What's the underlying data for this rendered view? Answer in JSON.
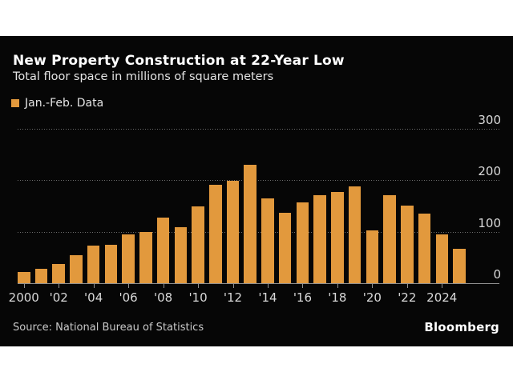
{
  "header": {
    "title": "New Property Construction at 22-Year Low",
    "subtitle": "Total floor space in millions of square meters"
  },
  "legend": {
    "label": "Jan.-Feb. Data",
    "swatch_color": "#e2993d"
  },
  "chart_data": {
    "type": "bar",
    "title": "New Property Construction at 22-Year Low",
    "subtitle": "Total floor space in millions of square meters",
    "series_name": "Jan.-Feb. Data",
    "categories": [
      2000,
      2001,
      2002,
      2003,
      2004,
      2005,
      2006,
      2007,
      2008,
      2009,
      2010,
      2011,
      2012,
      2013,
      2014,
      2015,
      2016,
      2017,
      2018,
      2019,
      2020,
      2021,
      2022,
      2023,
      2024,
      2025
    ],
    "values": [
      22,
      28,
      37,
      55,
      73,
      75,
      95,
      99,
      127,
      108,
      149,
      190,
      199,
      229,
      165,
      136,
      156,
      170,
      177,
      187,
      103,
      170,
      150,
      135,
      94,
      66
    ],
    "ylabel": "",
    "xlabel": "",
    "ylim": [
      0,
      300
    ],
    "y_ticks": [
      0,
      100,
      200,
      300
    ],
    "y_tick_side": "right",
    "x_tick_years": [
      2000,
      2002,
      2004,
      2006,
      2008,
      2010,
      2012,
      2014,
      2016,
      2018,
      2020,
      2022,
      2024
    ],
    "x_tick_labels": [
      "2000",
      "'02",
      "'04",
      "'06",
      "'08",
      "'10",
      "'12",
      "'14",
      "'16",
      "'18",
      "'20",
      "'22",
      "2024"
    ],
    "grid": "horizontal-dotted",
    "legend_position": "top-left",
    "bar_color": "#e2993d",
    "background_color": "#060606"
  },
  "footer": {
    "source": "Source: National Bureau of Statistics",
    "brand": "Bloomberg"
  },
  "colors": {
    "accent_orange": "#e2993d",
    "canvas_black": "#060606",
    "axis_text": "#d9d9d9",
    "gridline": "#6e6e6e",
    "baseline": "#909090",
    "page_white": "#ffffff"
  }
}
